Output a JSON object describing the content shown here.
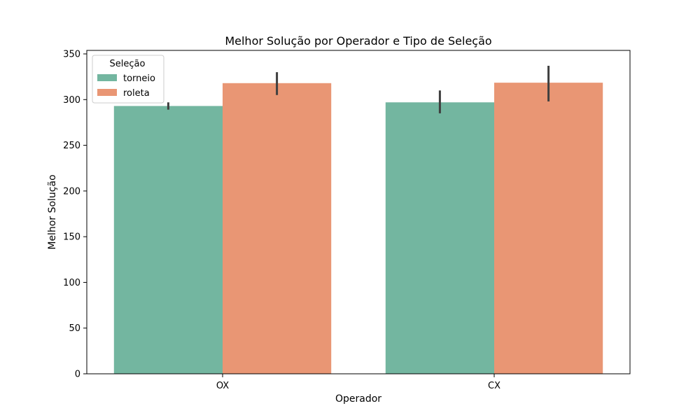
{
  "chart_data": {
    "type": "bar",
    "title": "Melhor Solução por Operador e Tipo de Seleção",
    "xlabel": "Operador",
    "ylabel": "Melhor Solução",
    "categories": [
      "OX",
      "CX"
    ],
    "ylim": [
      0,
      350
    ],
    "yticks": [
      0,
      50,
      100,
      150,
      200,
      250,
      300,
      350
    ],
    "grid": false,
    "legend": {
      "title": "Seleção",
      "placement": "top-left"
    },
    "series": [
      {
        "name": "torneio",
        "color": "#73b6a0",
        "values": [
          293,
          297
        ],
        "error_low": [
          289,
          285
        ],
        "error_high": [
          297,
          310
        ]
      },
      {
        "name": "roleta",
        "color": "#e99674",
        "values": [
          318,
          318.5
        ],
        "error_low": [
          305,
          298
        ],
        "error_high": [
          330,
          337
        ]
      }
    ],
    "error_bar_color": "#3f3f3f"
  }
}
